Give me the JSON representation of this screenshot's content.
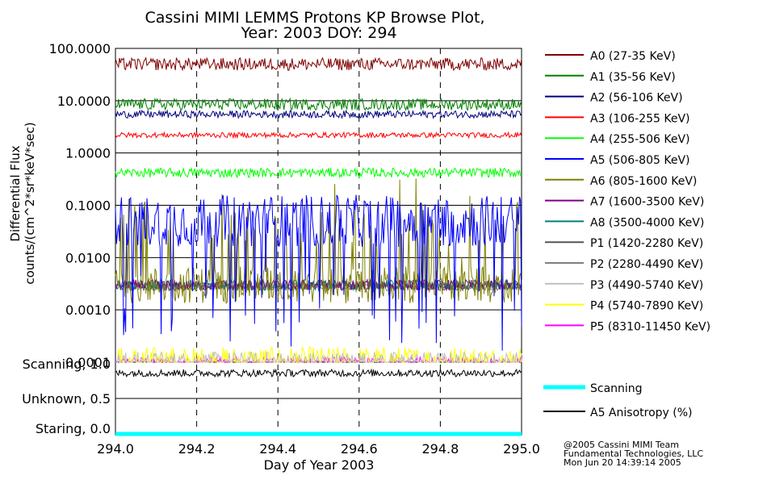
{
  "chart_data": [
    {
      "type": "line",
      "title": "Cassini MIMI LEMMS Protons KP Browse Plot,",
      "subtitle": "Year: 2003 DOY: 294",
      "ylabel_line1": "Differential Flux",
      "ylabel_line2": "counts/(cm^2*sr*keV*sec)",
      "yscale": "log",
      "ylim": [
        0.0001,
        100.0
      ],
      "yticks": [
        100.0,
        10.0,
        1.0,
        0.1,
        0.01,
        0.001,
        0.0001
      ],
      "ytick_labels": [
        "100.0000",
        "10.0000",
        "1.0000",
        "0.1000",
        "0.0100",
        "0.0010",
        "0.0001"
      ],
      "xlim": [
        294.0,
        295.0
      ],
      "grid": true,
      "legend_placement": "right",
      "series": [
        {
          "name": "A0 (27-35 KeV)",
          "color": "#7f0000",
          "level": 50,
          "spread": 0.12
        },
        {
          "name": "A1 (35-56 KeV)",
          "color": "#007f00",
          "level": 8.5,
          "spread": 0.11
        },
        {
          "name": "A2 (56-106 KeV)",
          "color": "#00007f",
          "level": 5.5,
          "spread": 0.07
        },
        {
          "name": "A3 (106-255 KeV)",
          "color": "#ff0000",
          "level": 2.2,
          "spread": 0.05
        },
        {
          "name": "A4 (255-506 KeV)",
          "color": "#00ff00",
          "level": 0.42,
          "spread": 0.09
        },
        {
          "name": "A5 (506-805 KeV)",
          "color": "#0000ff",
          "level": 0.05,
          "spread": 0.5
        },
        {
          "name": "A6 (805-1600 KeV)",
          "color": "#7f7f00",
          "level": 0.003,
          "spread": 0.35
        },
        {
          "name": "A7 (1600-3500 KeV)",
          "color": "#7f007f",
          "level": 0.003,
          "spread": 0.1
        },
        {
          "name": "A8 (3500-4000 KeV)",
          "color": "#007f7f",
          "level": 0.003,
          "spread": 0.1
        },
        {
          "name": "P1 (1420-2280 KeV)",
          "color": "#555555",
          "level": 0.0028,
          "spread": 0.08
        },
        {
          "name": "P2 (2280-4490 KeV)",
          "color": "#7f7f7f",
          "level": 0.0028,
          "spread": 0.08
        },
        {
          "name": "P3 (4490-5740 KeV)",
          "color": "#bfbfbf",
          "level": 0.0001,
          "spread": 0.2
        },
        {
          "name": "P4 (5740-7890 KeV)",
          "color": "#ffff00",
          "level": 0.0001,
          "spread": 0.3
        },
        {
          "name": "P5 (8310-11450 KeV)",
          "color": "#ff00ff",
          "level": 0.0001,
          "spread": 0.1
        }
      ]
    },
    {
      "type": "line",
      "xlabel": "Day of Year 2003",
      "xlim": [
        294.0,
        295.0
      ],
      "xticks": [
        294.0,
        294.2,
        294.4,
        294.6,
        294.8,
        295.0
      ],
      "xtick_labels": [
        "294.0",
        "294.2",
        "294.4",
        "294.6",
        "294.8",
        "295.0"
      ],
      "ylim": [
        0.0,
        1.0
      ],
      "ytick_labels": [
        "Scanning, 1.0",
        "Unknown, 0.5",
        "Staring, 0.0"
      ],
      "series": [
        {
          "name": "Scanning",
          "color": "#00ffff",
          "value": 0.0
        },
        {
          "name": "A5 Anisotropy (%)",
          "color": "#000000",
          "level": 0.85,
          "spread": 0.05
        }
      ]
    }
  ],
  "footer": {
    "line1": "@2005 Cassini MIMI Team",
    "line2": "Fundamental Technologies, LLC",
    "line3": "Mon Jun 20 14:39:14 2005"
  }
}
